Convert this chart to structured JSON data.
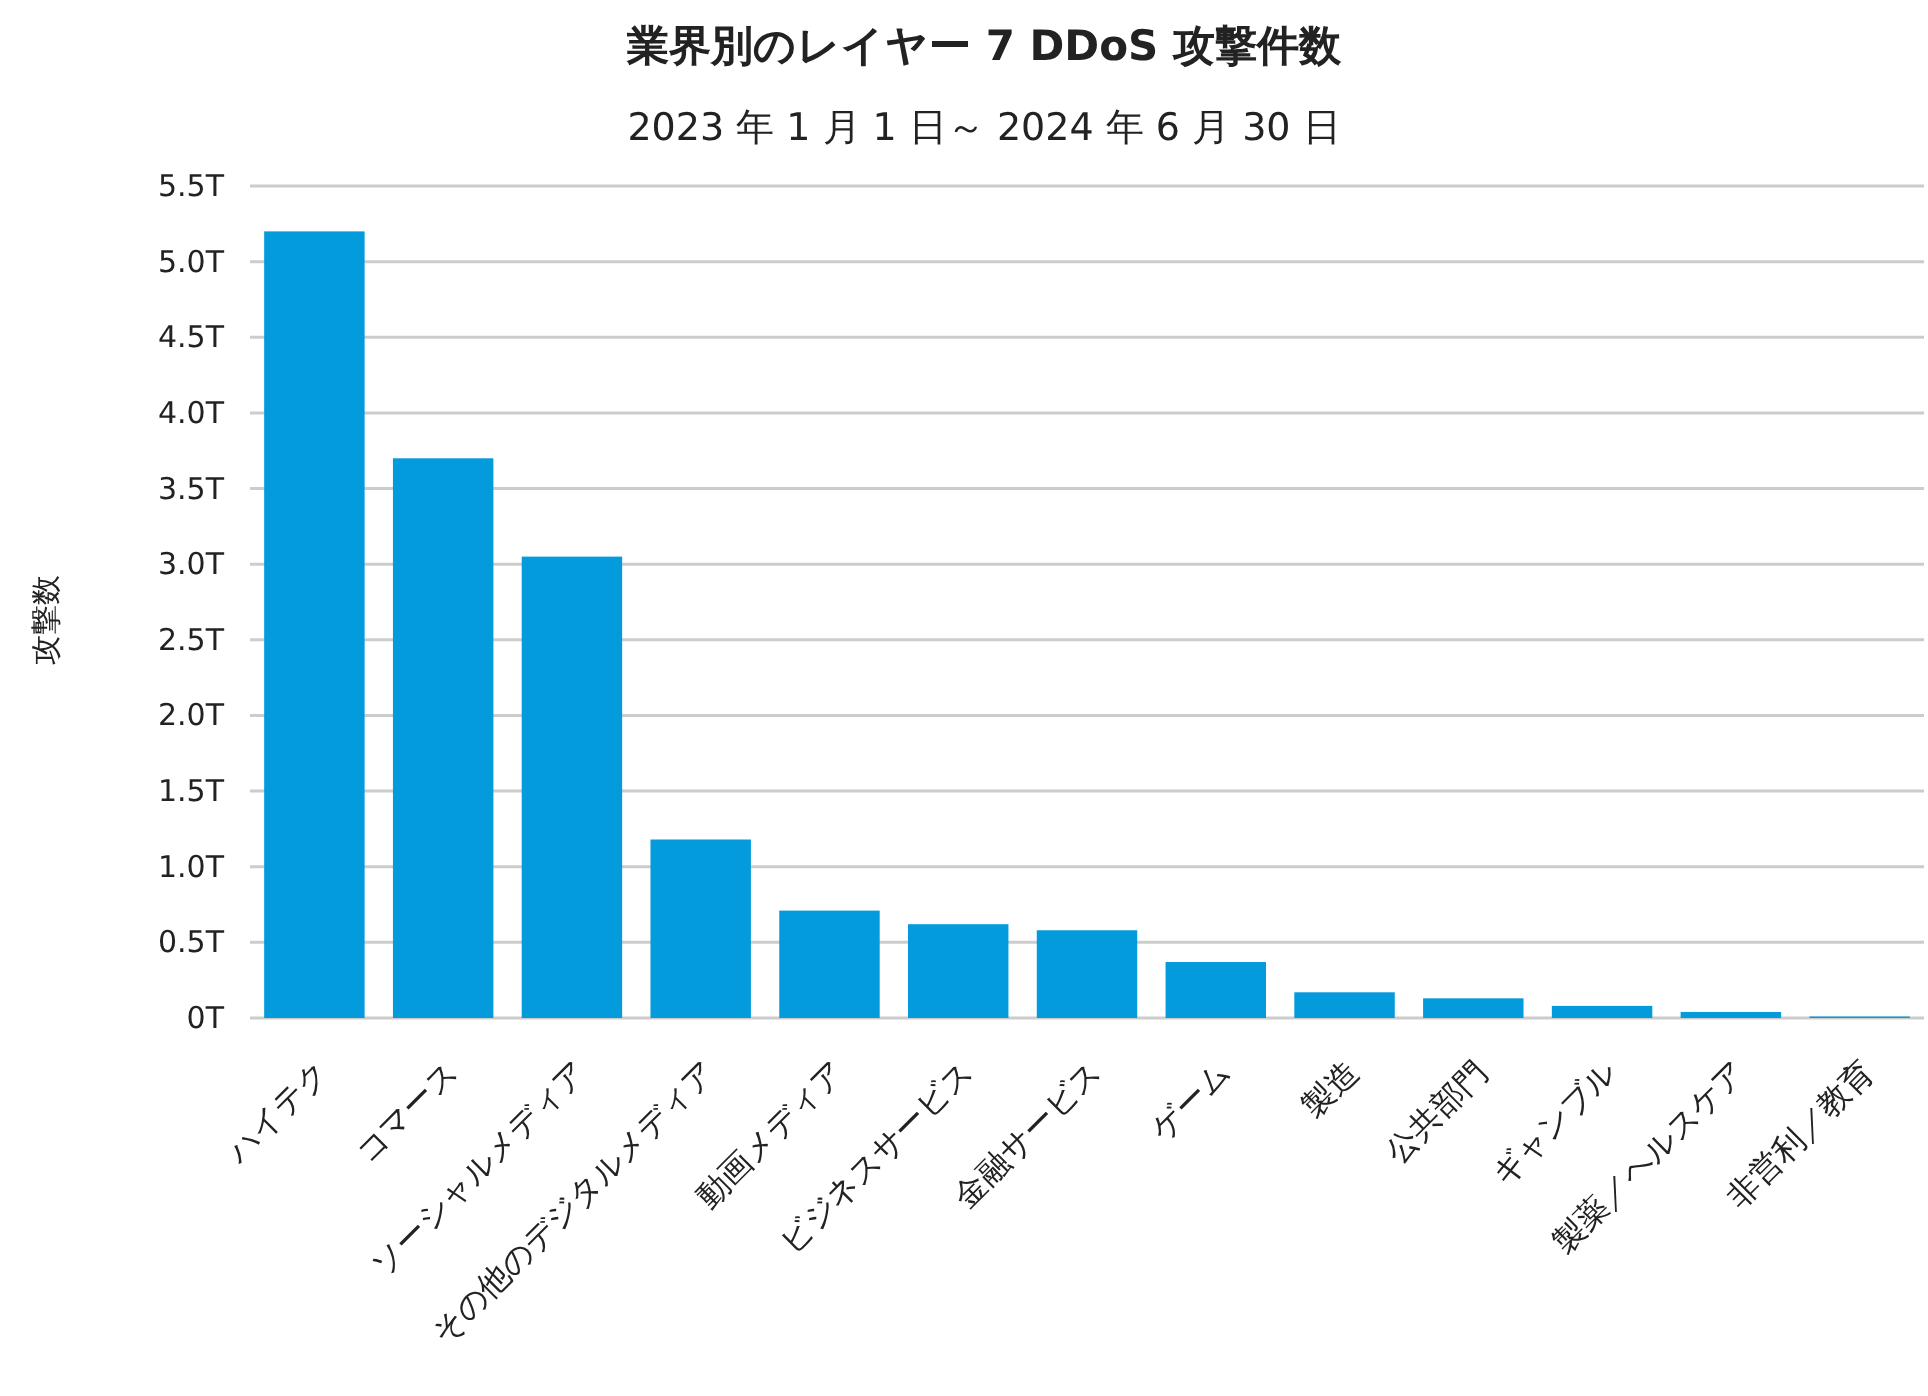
{
  "chart_data": {
    "type": "bar",
    "title": "業界別のレイヤー 7 DDoS 攻撃件数",
    "subtitle": "2023 年 1 月 1 日～ 2024 年 6 月 30 日",
    "ylabel": "攻撃数",
    "categories": [
      "ハイテク",
      "コマース",
      "ソーシャルメディア",
      "その他のデジタルメディア",
      "動画メディア",
      "ビジネスサービス",
      "金融サービス",
      "ゲーム",
      "製造",
      "公共部門",
      "ギャンブル",
      "製薬／ヘルスケア",
      "非営利／教育"
    ],
    "values": [
      5.2,
      3.7,
      3.05,
      1.18,
      0.71,
      0.62,
      0.58,
      0.37,
      0.17,
      0.13,
      0.08,
      0.04,
      0.01
    ],
    "color": "#039bdc",
    "ylim": [
      0,
      5.5
    ],
    "yticks": [
      {
        "value": 0,
        "label": "0T"
      },
      {
        "value": 0.5,
        "label": "0.5T"
      },
      {
        "value": 1,
        "label": "1.0T"
      },
      {
        "value": 1.5,
        "label": "1.5T"
      },
      {
        "value": 2,
        "label": "2.0T"
      },
      {
        "value": 2.5,
        "label": "2.5T"
      },
      {
        "value": 3,
        "label": "3.0T"
      },
      {
        "value": 3.5,
        "label": "3.5T"
      },
      {
        "value": 4,
        "label": "4.0T"
      },
      {
        "value": 4.5,
        "label": "4.5T"
      },
      {
        "value": 5,
        "label": "5.0T"
      },
      {
        "value": 5.5,
        "label": "5.5T"
      }
    ],
    "grid": "y"
  }
}
